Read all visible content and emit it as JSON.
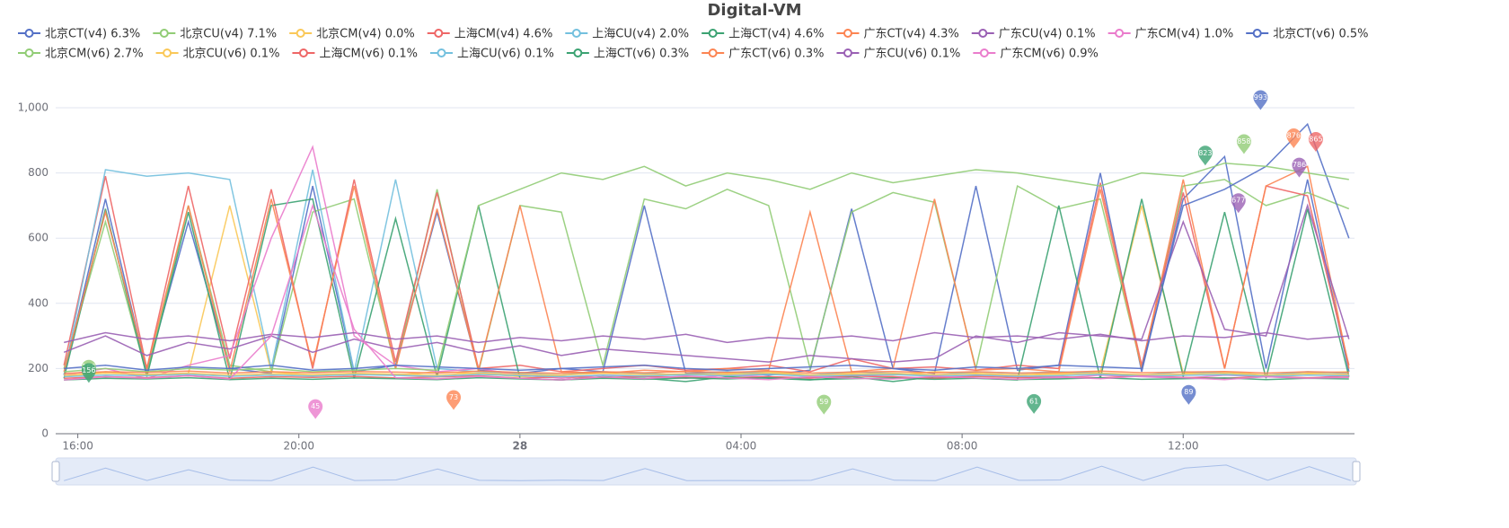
{
  "chart_data": {
    "type": "line",
    "title": "Digital-VM",
    "x": [
      15.75,
      16.5,
      17.25,
      18,
      18.75,
      19.5,
      20.25,
      21,
      21.75,
      22.5,
      23.25,
      24,
      24.75,
      25.5,
      26.25,
      27,
      27.75,
      28.5,
      29.25,
      30,
      30.75,
      31.5,
      32.25,
      33,
      33.75,
      34.5,
      35.25,
      36,
      36.75,
      37.5,
      38.25,
      39
    ],
    "xlim": [
      15.6,
      39.1
    ],
    "xticks": [
      {
        "value": 16,
        "label": "16:00"
      },
      {
        "value": 20,
        "label": "20:00"
      },
      {
        "value": 24,
        "label": "28"
      },
      {
        "value": 28,
        "label": "04:00"
      },
      {
        "value": 32,
        "label": "08:00"
      },
      {
        "value": 36,
        "label": "12:00"
      }
    ],
    "ylim": [
      0,
      1000
    ],
    "yticks": [
      0,
      200,
      400,
      600,
      800,
      {
        "value": 1000,
        "label": "1,000"
      }
    ],
    "grid": true,
    "legend": "top",
    "series": [
      {
        "name": "北京CT(v4) 6.3%",
        "color": "#5470c6",
        "values": [
          180,
          720,
          190,
          650,
          200,
          185,
          760,
          190,
          210,
          680,
          195,
          185,
          200,
          190,
          700,
          185,
          190,
          180,
          195,
          690,
          200,
          185,
          760,
          195,
          210,
          800,
          190,
          720,
          850,
          200,
          780,
          190
        ]
      },
      {
        "name": "北京CU(v4) 7.1%",
        "color": "#91cc75",
        "values": [
          200,
          650,
          180,
          700,
          210,
          190,
          680,
          720,
          200,
          750,
          190,
          700,
          680,
          210,
          720,
          690,
          750,
          700,
          200,
          680,
          740,
          710,
          200,
          760,
          690,
          720,
          200,
          760,
          780,
          700,
          740,
          690
        ],
        "mark_points": [
          {
            "x": 16.2,
            "value": 166
          }
        ]
      },
      {
        "name": "北京CM(v4) 0.0%",
        "color": "#fac858",
        "values": [
          175,
          190,
          180,
          185,
          700,
          190,
          180,
          185,
          180,
          190,
          185,
          175,
          180,
          190,
          185,
          180,
          185,
          190,
          180,
          185,
          180,
          190,
          185,
          180,
          185,
          190,
          700,
          185,
          190,
          180,
          185,
          190
        ]
      },
      {
        "name": "上海CM(v4) 4.6%",
        "color": "#ee6666",
        "values": [
          210,
          790,
          200,
          760,
          230,
          750,
          200,
          780,
          220,
          740,
          200,
          210,
          190,
          200,
          210,
          195,
          200,
          210,
          190,
          230,
          200,
          205,
          195,
          210,
          200,
          770,
          210,
          740,
          200,
          760,
          730,
          210
        ],
        "mark_points": [
          {
            "x": 38.4,
            "value": 865
          }
        ]
      },
      {
        "name": "上海CU(v4) 2.0%",
        "color": "#73c0de",
        "values": [
          180,
          810,
          790,
          800,
          780,
          200,
          810,
          190,
          780,
          200,
          190,
          185,
          180,
          190,
          185,
          180,
          190,
          185,
          180,
          190,
          185,
          180,
          190,
          185,
          190,
          185,
          180,
          190,
          185,
          180,
          190,
          185
        ]
      },
      {
        "name": "上海CT(v4) 4.6%",
        "color": "#3ba272",
        "values": [
          170,
          690,
          175,
          680,
          165,
          700,
          720,
          170,
          660,
          175,
          700,
          170,
          165,
          175,
          170,
          160,
          175,
          170,
          165,
          175,
          160,
          175,
          170,
          165,
          700,
          170,
          720,
          175,
          680,
          170,
          690,
          175
        ],
        "mark_points": [
          {
            "x": 16.2,
            "value": 156
          },
          {
            "x": 36.4,
            "value": 823
          },
          {
            "x": 33.3,
            "value": 61
          }
        ]
      },
      {
        "name": "广东CT(v4) 4.3%",
        "color": "#fc8452",
        "values": [
          190,
          680,
          200,
          700,
          190,
          720,
          210,
          760,
          200,
          690,
          195,
          700,
          190,
          185,
          195,
          190,
          200,
          195,
          680,
          190,
          200,
          720,
          195,
          200,
          190,
          750,
          200,
          780,
          200,
          760,
          820,
          200
        ],
        "mark_points": [
          {
            "x": 22.8,
            "value": 73
          },
          {
            "x": 38.0,
            "value": 876
          }
        ]
      },
      {
        "name": "广东CU(v4) 0.1%",
        "color": "#9a60b4",
        "values": [
          250,
          300,
          240,
          280,
          260,
          300,
          250,
          290,
          260,
          280,
          250,
          270,
          240,
          260,
          250,
          240,
          230,
          220,
          240,
          230,
          220,
          230,
          300,
          280,
          310,
          300,
          290,
          650,
          320,
          300,
          700,
          290
        ],
        "mark_points": [
          {
            "x": 37.0,
            "value": 677
          },
          {
            "x": 38.1,
            "value": 786
          }
        ]
      },
      {
        "name": "广东CM(v4) 1.0%",
        "color": "#ea7ccc",
        "values": [
          180,
          200,
          170,
          210,
          240,
          600,
          880,
          300,
          210,
          190,
          200,
          180,
          170,
          180,
          175,
          170,
          180,
          175,
          170,
          180,
          175,
          170,
          180,
          175,
          170,
          180,
          175,
          170,
          180,
          175,
          170,
          180
        ],
        "mark_points": [
          {
            "x": 20.3,
            "value": 45
          }
        ]
      },
      {
        "name": "北京CT(v6) 0.5%",
        "color": "#5470c6",
        "values": [
          200,
          210,
          195,
          205,
          200,
          210,
          195,
          200,
          210,
          205,
          200,
          195,
          200,
          205,
          210,
          200,
          195,
          200,
          205,
          210,
          200,
          195,
          205,
          200,
          210,
          205,
          200,
          700,
          750,
          820,
          950,
          600
        ],
        "mark_points": [
          {
            "x": 37.4,
            "value": 993
          },
          {
            "x": 36.1,
            "value": 89
          }
        ]
      },
      {
        "name": "北京CM(v6) 2.7%",
        "color": "#91cc75",
        "values": [
          190,
          200,
          190,
          200,
          195,
          200,
          190,
          195,
          200,
          195,
          700,
          750,
          800,
          780,
          820,
          760,
          800,
          780,
          750,
          800,
          770,
          790,
          810,
          800,
          780,
          760,
          800,
          790,
          830,
          820,
          800,
          780
        ],
        "mark_points": [
          {
            "x": 37.1,
            "value": 858
          },
          {
            "x": 29.5,
            "value": 59
          }
        ]
      },
      {
        "name": "北京CU(v6) 0.1%",
        "color": "#fac858",
        "values": [
          180,
          185,
          182,
          186,
          180,
          184,
          181,
          185,
          183,
          180,
          186,
          182,
          180,
          185,
          181,
          184,
          182,
          186,
          180,
          183,
          185,
          181,
          184,
          180,
          182,
          186,
          181,
          183,
          185,
          180,
          184,
          182
        ]
      },
      {
        "name": "上海CM(v6) 0.1%",
        "color": "#ee6666",
        "values": [
          170,
          175,
          172,
          178,
          170,
          175,
          173,
          176,
          171,
          174,
          178,
          170,
          175,
          172,
          176,
          173,
          170,
          175,
          171,
          177,
          174,
          170,
          176,
          172,
          175,
          171,
          178,
          173,
          170,
          176,
          172,
          174
        ]
      },
      {
        "name": "上海CU(v6) 0.1%",
        "color": "#73c0de",
        "values": [
          175,
          180,
          178,
          182,
          176,
          180,
          177,
          181,
          179,
          176,
          182,
          178,
          175,
          180,
          177,
          181,
          178,
          182,
          176,
          179,
          181,
          177,
          180,
          176,
          178,
          182,
          177,
          179,
          181,
          176,
          180,
          178
        ]
      },
      {
        "name": "上海CT(v6) 0.3%",
        "color": "#3ba272",
        "values": [
          165,
          170,
          168,
          172,
          166,
          170,
          167,
          171,
          169,
          166,
          172,
          168,
          165,
          170,
          167,
          171,
          168,
          172,
          166,
          169,
          171,
          167,
          170,
          166,
          168,
          172,
          167,
          169,
          171,
          166,
          170,
          168
        ]
      },
      {
        "name": "广东CT(v6) 0.3%",
        "color": "#fc8452",
        "values": [
          185,
          190,
          188,
          192,
          186,
          190,
          187,
          191,
          189,
          186,
          192,
          188,
          185,
          190,
          187,
          191,
          188,
          192,
          186,
          189,
          191,
          187,
          190,
          186,
          188,
          192,
          187,
          189,
          191,
          186,
          190,
          188
        ]
      },
      {
        "name": "广东CU(v6) 0.1%",
        "color": "#9a60b4",
        "values": [
          280,
          310,
          290,
          300,
          285,
          305,
          295,
          310,
          290,
          300,
          280,
          295,
          285,
          300,
          290,
          305,
          280,
          295,
          290,
          300,
          285,
          310,
          295,
          300,
          290,
          305,
          285,
          300,
          295,
          310,
          290,
          300
        ]
      },
      {
        "name": "广东CM(v6) 0.9%",
        "color": "#ea7ccc",
        "values": [
          165,
          175,
          170,
          178,
          168,
          300,
          700,
          320,
          172,
          168,
          176,
          170,
          165,
          174,
          169,
          177,
          171,
          166,
          175,
          170,
          168,
          176,
          171,
          167,
          174,
          169,
          177,
          172,
          166,
          175,
          170,
          173
        ]
      }
    ]
  }
}
